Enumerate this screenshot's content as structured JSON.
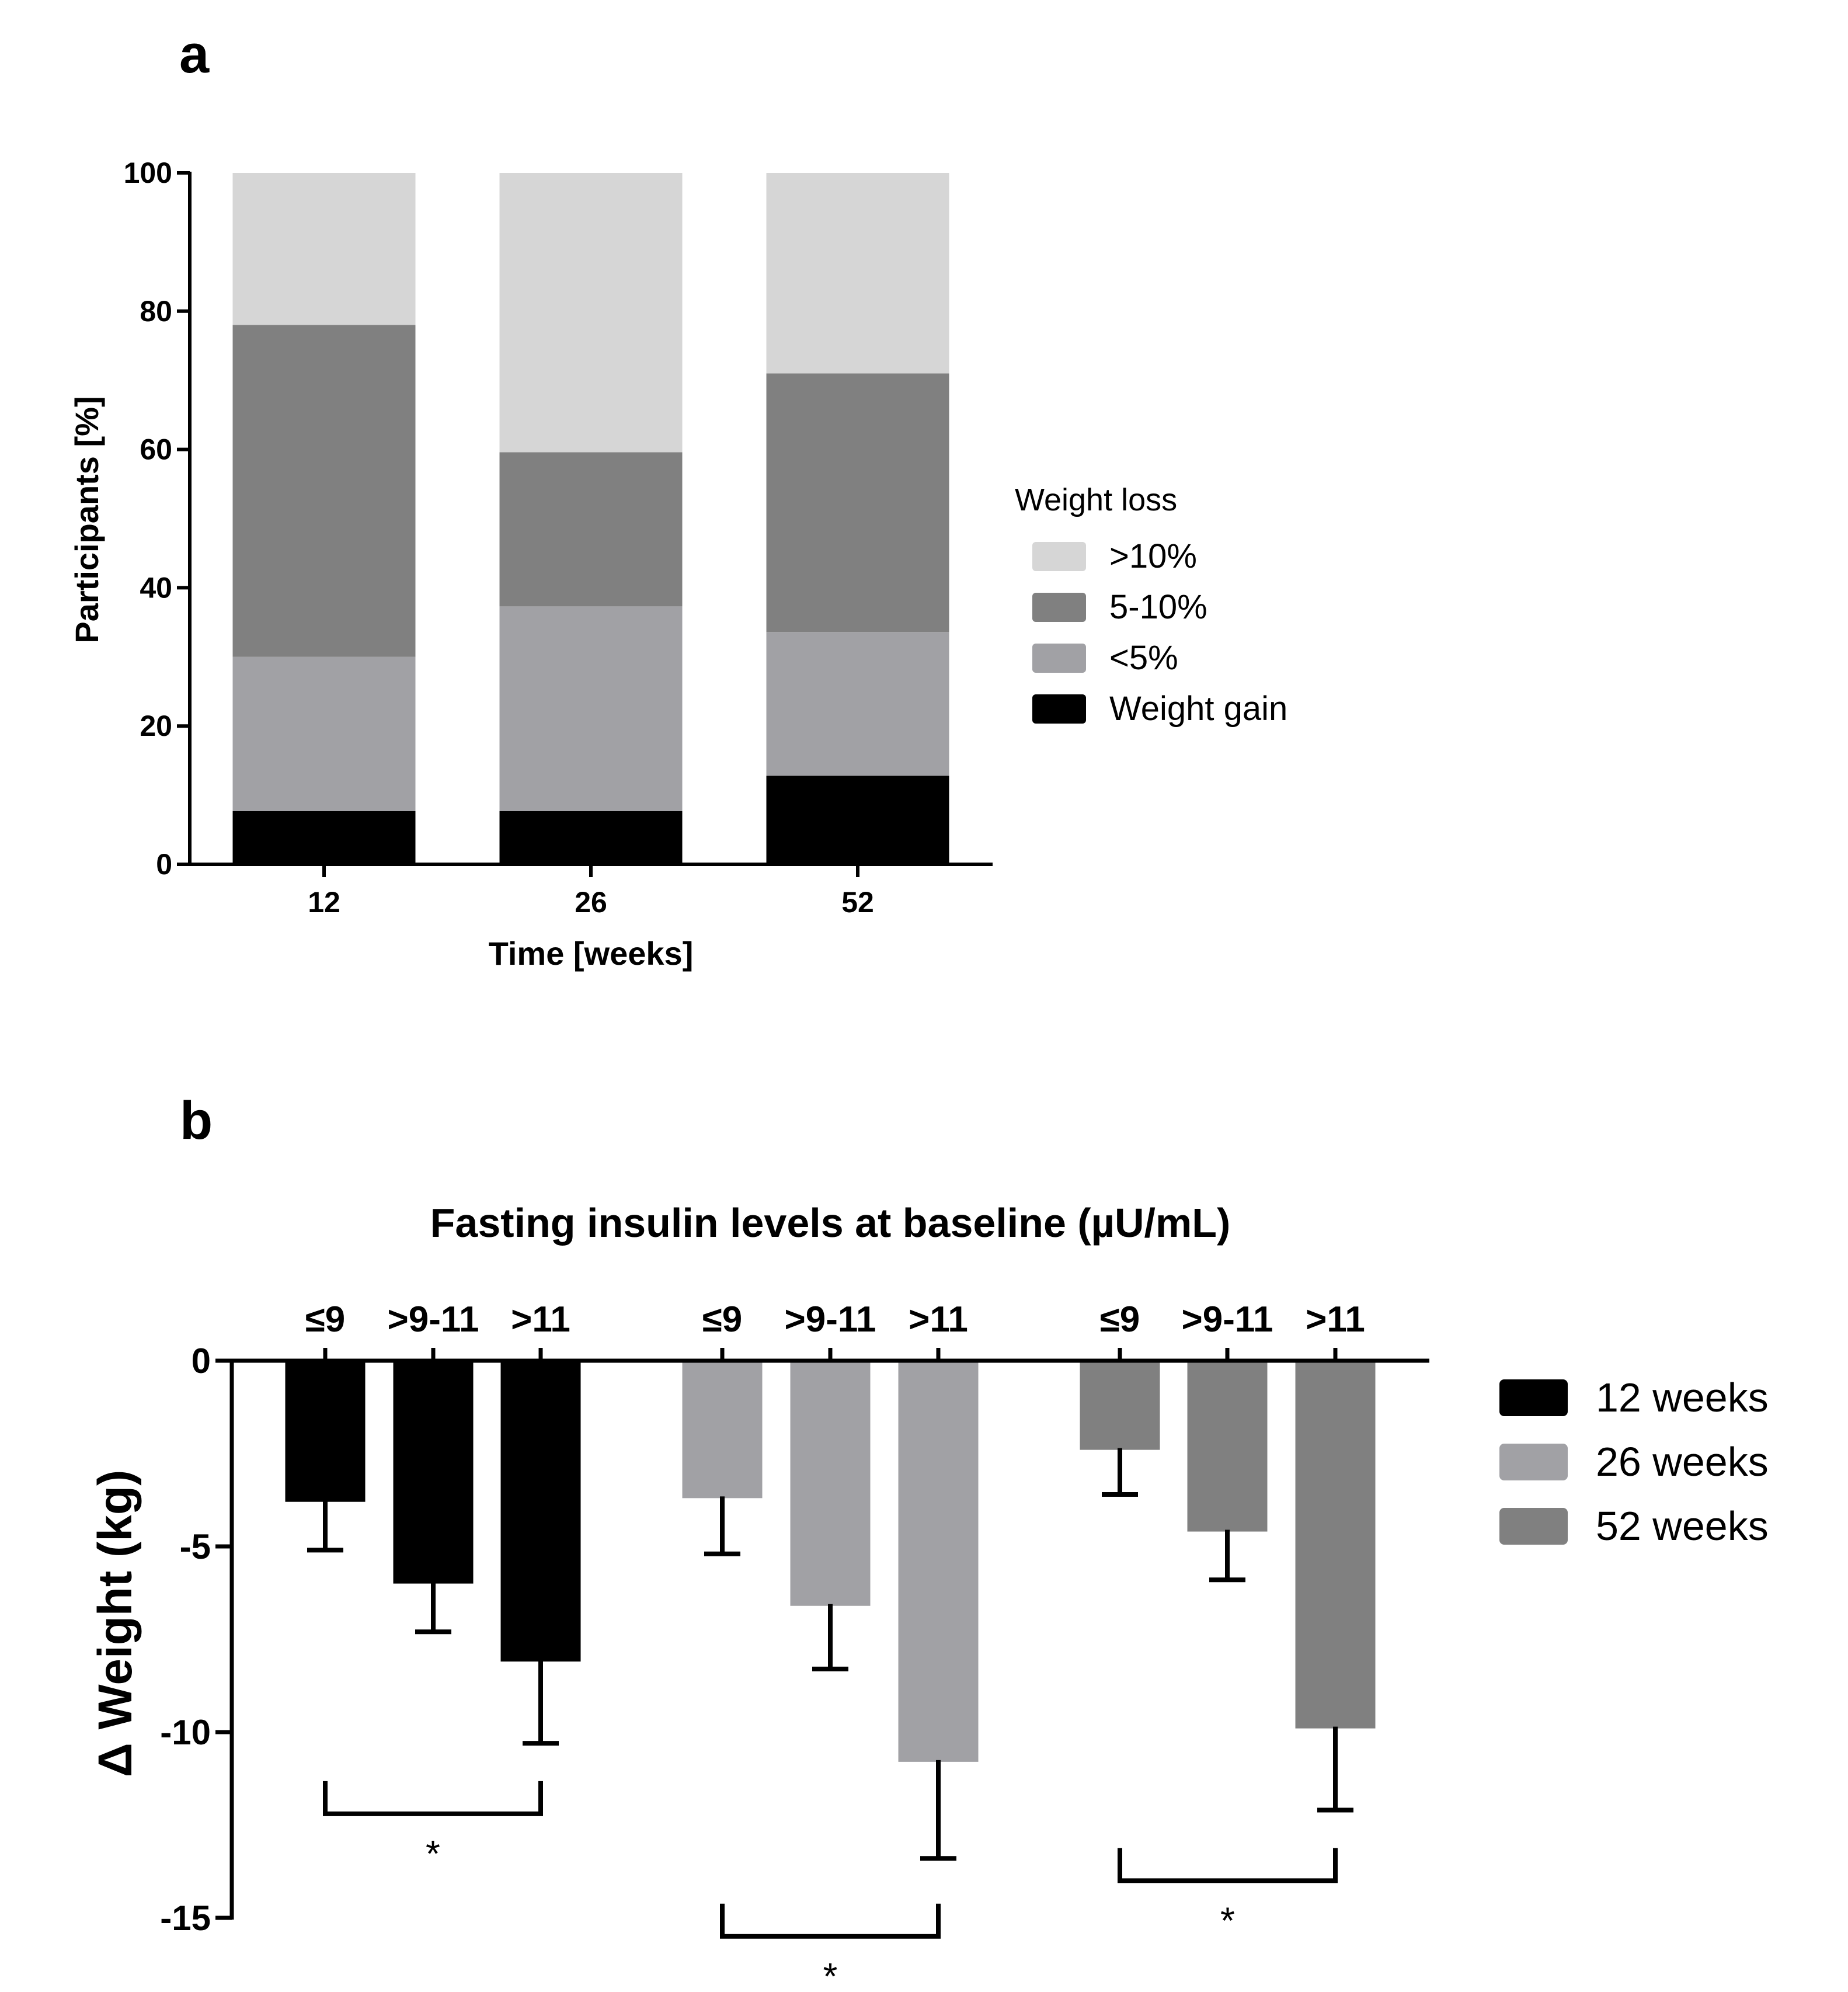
{
  "panel_a_label": "a",
  "panel_b_label": "b",
  "chart_data": [
    {
      "type": "bar",
      "stacked": true,
      "categories": [
        "12",
        "26",
        "52"
      ],
      "xlabel": "Time [weeks]",
      "ylabel": "Participants [%]",
      "ylim": [
        0,
        100
      ],
      "yticks": [
        "0",
        "20",
        "40",
        "60",
        "80",
        "100"
      ],
      "legend_title": "Weight loss",
      "legend_position": "right",
      "series": [
        {
          "name": "Weight gain",
          "values": [
            7.7,
            7.7,
            12.8
          ],
          "color": "#000000"
        },
        {
          "name": "<5%",
          "values": [
            22.3,
            29.6,
            20.8
          ],
          "color": "#a1a1a5"
        },
        {
          "name": "5-10%",
          "values": [
            48.0,
            22.3,
            37.4
          ],
          "color": "#808080"
        },
        {
          "name": ">10%",
          "values": [
            22.0,
            40.4,
            29.0
          ],
          "color": "#d6d6d6"
        }
      ],
      "legend_order": [
        ">10%",
        "5-10%",
        "<5%",
        "Weight gain"
      ]
    },
    {
      "type": "bar",
      "title": "Fasting insulin levels at baseline (µU/mL)",
      "ylabel": "Δ Weight (kg)",
      "ylim": [
        -15,
        0
      ],
      "yticks": [
        "0",
        "-5",
        "-10",
        "-15"
      ],
      "categories": [
        "≤9",
        ">9-11",
        ">11"
      ],
      "legend_position": "right",
      "series": [
        {
          "name": "12 weeks",
          "color": "#000000",
          "values": [
            -3.8,
            -6.0,
            -8.1
          ],
          "errors": [
            1.3,
            1.3,
            2.2
          ]
        },
        {
          "name": "26 weeks",
          "color": "#a1a1a5",
          "values": [
            -3.7,
            -6.6,
            -10.8
          ],
          "errors": [
            1.5,
            1.7,
            2.6
          ]
        },
        {
          "name": "52 weeks",
          "color": "#808080",
          "values": [
            -2.4,
            -4.6,
            -9.9
          ],
          "errors": [
            1.2,
            1.3,
            2.2
          ]
        }
      ],
      "significance": [
        {
          "group": "12 weeks",
          "label": "*",
          "y": -12.2
        },
        {
          "group": "26 weeks",
          "label": "*",
          "y": -15.5
        },
        {
          "group": "52 weeks",
          "label": "*",
          "y": -14.0
        }
      ]
    }
  ]
}
